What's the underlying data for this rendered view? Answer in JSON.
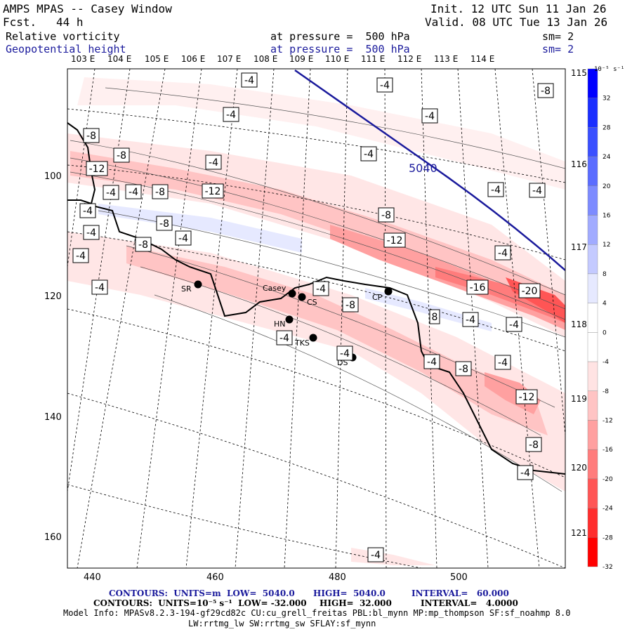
{
  "header": {
    "title": "AMPS MPAS -- Casey Window",
    "fcst_label": "Fcst.",
    "fcst_value": "44 h",
    "init": "Init. 12 UTC Sun 11 Jan 26",
    "valid": "Valid. 08 UTC Tue 13 Jan 26",
    "field1": {
      "name": "Relative vorticity",
      "level": "at pressure =  500 hPa",
      "sm": "sm= 2"
    },
    "field2": {
      "name": "Geopotential height",
      "level": "at pressure =  500 hPa",
      "sm": "sm= 2"
    }
  },
  "axes": {
    "lon_top": [
      "103 E",
      "104 E",
      "105 E",
      "106 E",
      "107 E",
      "108 E",
      "109 E",
      "110 E",
      "111 E",
      "112 E",
      "113 E",
      "114 E"
    ],
    "lat_right": [
      "115 E",
      "116 E",
      "117 E",
      "118 E",
      "119 E",
      "120 E",
      "121 E"
    ],
    "x_ticks": [
      "440",
      "460",
      "480",
      "500"
    ],
    "y_ticks": [
      "100",
      "120",
      "140",
      "160"
    ]
  },
  "colorbar": {
    "unit": "10⁻⁵ s⁻¹",
    "labels": [
      "32",
      "28",
      "24",
      "20",
      "16",
      "12",
      "8",
      "4",
      "0",
      "-4",
      "-8",
      "-12",
      "-16",
      "-20",
      "-24",
      "-28",
      "-32"
    ],
    "colors": [
      "#0000ff",
      "#1a2eff",
      "#3a4fff",
      "#5a6cff",
      "#7d8bff",
      "#a1abff",
      "#c4caff",
      "#e6e9ff",
      "#ffffff",
      "#ffffff",
      "#ffe3e3",
      "#ffc4c4",
      "#ffa0a0",
      "#ff7c7c",
      "#ff5555",
      "#ff2d2d",
      "#ff0000"
    ]
  },
  "stations": [
    {
      "name": "SR"
    },
    {
      "name": "Casey"
    },
    {
      "name": "CS"
    },
    {
      "name": "HN"
    },
    {
      "name": "TKS"
    },
    {
      "name": "DS"
    },
    {
      "name": "CP"
    }
  ],
  "contour_labels": [
    "-4",
    "-8",
    "-12",
    "-16",
    "-20",
    "4",
    "8",
    "5040"
  ],
  "footer": {
    "line1_a": "CONTOURS:  UNITS=m  LOW=  5040.0",
    "line1_b": "HIGH=  5040.0",
    "line1_c": "INTERVAL=   60.000",
    "line2_a": "CONTOURS:  UNITS=10⁻⁵ s⁻¹  LOW= -32.000",
    "line2_b": "HIGH=  32.000",
    "line2_c": "INTERVAL=   4.0000",
    "model_info": "Model Info: MPASv8.2.3-194-gf29cd82c CU:cu_grell_freitas PBL:bl_mynn MP:mp_thompson SF:sf_noahmp 8.0",
    "model_info2": "LW:rrtmg_lw SW:rrtmg_sw SFLAY:sf_mynn"
  }
}
